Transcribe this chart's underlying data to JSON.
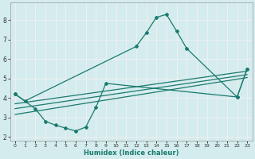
{
  "xlabel": "Humidex (Indice chaleur)",
  "x_ticks": [
    0,
    1,
    2,
    3,
    4,
    5,
    6,
    7,
    8,
    9,
    10,
    11,
    12,
    13,
    14,
    15,
    16,
    17,
    18,
    19,
    20,
    21,
    22,
    23
  ],
  "xlim": [
    -0.5,
    23.5
  ],
  "ylim": [
    1.8,
    8.9
  ],
  "y_ticks": [
    2,
    3,
    4,
    5,
    6,
    7,
    8
  ],
  "bg_color": "#d4ecee",
  "line_color": "#1a7a6e",
  "grid_color": "#f0f0f0",
  "upper_curve_x": [
    0,
    1,
    12,
    13,
    14,
    15,
    16,
    17,
    22,
    23
  ],
  "upper_curve_y": [
    4.2,
    3.85,
    6.65,
    7.35,
    8.15,
    8.3,
    7.45,
    6.55,
    4.05,
    5.5
  ],
  "lower_curve_x": [
    0,
    2,
    3,
    4,
    5,
    6,
    7,
    8,
    9,
    22,
    23
  ],
  "lower_curve_y": [
    4.2,
    3.45,
    2.8,
    2.6,
    2.45,
    2.3,
    2.5,
    3.5,
    4.75,
    4.05,
    5.5
  ],
  "line1_x": [
    0,
    23
  ],
  "line1_y": [
    3.15,
    5.05
  ],
  "line2_x": [
    0,
    23
  ],
  "line2_y": [
    3.45,
    5.2
  ],
  "line3_x": [
    0,
    23
  ],
  "line3_y": [
    3.7,
    5.38
  ]
}
